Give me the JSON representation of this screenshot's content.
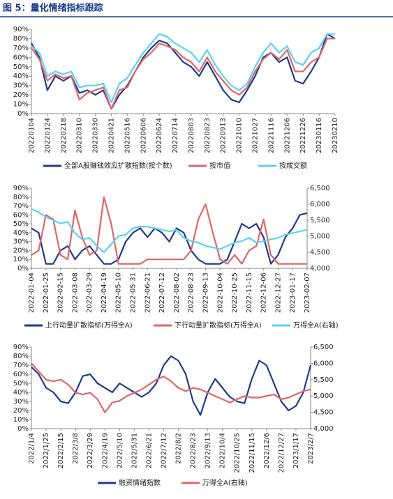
{
  "title": "图 5：量化情绪指标跟踪",
  "chart_data": [
    {
      "type": "line",
      "categories": [
        "20220104",
        null,
        "20220124",
        null,
        "20220218",
        null,
        "20220310",
        null,
        "20220330",
        null,
        "20220421",
        null,
        "20220516",
        null,
        "20220606",
        null,
        "20220624",
        null,
        "20220714",
        null,
        "20220803",
        null,
        "20220823",
        null,
        "20220913",
        null,
        "20221010",
        null,
        "20221027",
        null,
        "20221116",
        null,
        "20221206",
        null,
        "20221226",
        null,
        "20230116",
        null,
        "20230210"
      ],
      "ylim": [
        0,
        90
      ],
      "yticks": [
        {
          "value": 0,
          "label": "0%"
        },
        {
          "value": 10,
          "label": "10%"
        },
        {
          "value": 20,
          "label": "20%"
        },
        {
          "value": 30,
          "label": "30%"
        },
        {
          "value": 40,
          "label": "40%"
        },
        {
          "value": 50,
          "label": "50%"
        },
        {
          "value": 60,
          "label": "60%"
        },
        {
          "value": 70,
          "label": "70%"
        },
        {
          "value": 80,
          "label": "80%"
        },
        {
          "value": 90,
          "label": "90%"
        }
      ],
      "series": [
        {
          "name": "全部A股赚钱效应扩散指数(按个数)",
          "color": "#1f3b8c",
          "values": [
            75,
            60,
            25,
            40,
            35,
            40,
            22,
            25,
            20,
            25,
            5,
            20,
            30,
            45,
            60,
            70,
            78,
            75,
            65,
            55,
            50,
            40,
            55,
            40,
            25,
            15,
            12,
            25,
            40,
            60,
            65,
            55,
            60,
            35,
            32,
            45,
            60,
            85,
            80
          ]
        },
        {
          "name": "按市值",
          "color": "#e06666",
          "values": [
            70,
            58,
            35,
            42,
            38,
            40,
            15,
            22,
            25,
            28,
            5,
            25,
            28,
            45,
            58,
            65,
            75,
            72,
            68,
            60,
            55,
            45,
            60,
            45,
            35,
            25,
            20,
            28,
            45,
            58,
            65,
            58,
            68,
            45,
            45,
            55,
            60,
            80,
            80
          ]
        },
        {
          "name": "按成交额",
          "color": "#5bd2f0",
          "values": [
            72,
            65,
            40,
            45,
            42,
            45,
            28,
            30,
            30,
            32,
            12,
            32,
            38,
            52,
            65,
            75,
            85,
            82,
            75,
            70,
            65,
            55,
            68,
            52,
            40,
            30,
            25,
            32,
            50,
            65,
            75,
            65,
            72,
            55,
            52,
            65,
            70,
            85,
            85
          ]
        }
      ]
    },
    {
      "type": "line",
      "categories": [
        "2022-01-04",
        null,
        "2022-01-25",
        null,
        "2022-02-15",
        null,
        "2022-03-08",
        null,
        "2022-03-29",
        null,
        "2022-04-19",
        null,
        "2022-05-10",
        null,
        "2022-05-31",
        null,
        "2022-06-21",
        null,
        "2022-07-12",
        null,
        "2022-08-02",
        null,
        "2022-08-23",
        null,
        "2022-09-13",
        null,
        "2022-10-04",
        null,
        "2022-10-25",
        null,
        "2022-11-15",
        null,
        "2022-12-06",
        null,
        "2022-12-27",
        null,
        "2023-01-17",
        null,
        "2023-02-07"
      ],
      "ylim": [
        0,
        90
      ],
      "yticks": [
        {
          "value": 0,
          "label": "0%"
        },
        {
          "value": 10,
          "label": "10%"
        },
        {
          "value": 20,
          "label": "20%"
        },
        {
          "value": 30,
          "label": "30%"
        },
        {
          "value": 40,
          "label": "40%"
        },
        {
          "value": 50,
          "label": "50%"
        },
        {
          "value": 60,
          "label": "60%"
        },
        {
          "value": 70,
          "label": "70%"
        },
        {
          "value": 80,
          "label": "80%"
        },
        {
          "value": 90,
          "label": "90%"
        }
      ],
      "y2lim": [
        4000,
        6500
      ],
      "y2ticks": [
        {
          "value": 4000,
          "label": "4,000"
        },
        {
          "value": 4500,
          "label": "4,500"
        },
        {
          "value": 5000,
          "label": "5,000"
        },
        {
          "value": 5500,
          "label": "5,500"
        },
        {
          "value": 6000,
          "label": "6,000"
        },
        {
          "value": 6500,
          "label": "6,500"
        }
      ],
      "series": [
        {
          "name": "上行动量扩散指标(万得全A)",
          "color": "#1f3b8c",
          "values": [
            45,
            40,
            5,
            5,
            20,
            25,
            10,
            20,
            25,
            15,
            5,
            5,
            10,
            30,
            40,
            45,
            35,
            45,
            40,
            30,
            45,
            40,
            20,
            10,
            5,
            5,
            5,
            10,
            30,
            50,
            45,
            50,
            35,
            5,
            15,
            35,
            45,
            60,
            62
          ]
        },
        {
          "name": "下行动量扩散指标(万得全A)",
          "color": "#e06666",
          "values": [
            15,
            20,
            60,
            55,
            15,
            10,
            65,
            35,
            15,
            20,
            80,
            50,
            5,
            5,
            5,
            5,
            10,
            10,
            10,
            10,
            10,
            10,
            20,
            55,
            72,
            40,
            10,
            5,
            15,
            5,
            20,
            25,
            55,
            15,
            5,
            5,
            5,
            5,
            5
          ]
        },
        {
          "name": "万得全A(右轴)",
          "color": "#5bd2f0",
          "axis": "y2",
          "values": [
            5850,
            5750,
            5600,
            5500,
            5400,
            5450,
            5100,
            4900,
            4950,
            4700,
            4500,
            4750,
            5000,
            5050,
            5250,
            5300,
            5300,
            5250,
            5200,
            5150,
            5200,
            4950,
            4850,
            4800,
            4700,
            4650,
            4600,
            4700,
            4800,
            4850,
            4950,
            4800,
            4850,
            4900,
            4950,
            5050,
            5100,
            5150,
            5200
          ]
        }
      ]
    },
    {
      "type": "line",
      "categories": [
        "2022/1/4",
        null,
        "2022/1/25",
        null,
        "2022/2/15",
        null,
        "2022/3/8",
        null,
        "2022/3/29",
        null,
        "2022/4/19",
        null,
        "2022/5/10",
        null,
        "2022/5/31",
        null,
        "2022/6/21",
        null,
        "2022/7/12",
        null,
        "2022/8/2",
        null,
        "2022/8/23",
        null,
        "2022/9/13",
        null,
        "2022/10/4",
        null,
        "2022/10/25",
        null,
        "2022/11/15",
        null,
        "2022/12/6",
        null,
        "2022/12/27",
        null,
        "2023/1/17",
        null,
        "2023/2/7"
      ],
      "ylim": [
        0,
        90
      ],
      "yticks": [
        {
          "value": 0,
          "label": "0%"
        },
        {
          "value": 10,
          "label": "10%"
        },
        {
          "value": 20,
          "label": "20%"
        },
        {
          "value": 30,
          "label": "30%"
        },
        {
          "value": 40,
          "label": "40%"
        },
        {
          "value": 50,
          "label": "50%"
        },
        {
          "value": 60,
          "label": "60%"
        },
        {
          "value": 70,
          "label": "70%"
        },
        {
          "value": 80,
          "label": "80%"
        },
        {
          "value": 90,
          "label": "90%"
        }
      ],
      "y2lim": [
        4000,
        6500
      ],
      "y2ticks": [
        {
          "value": 4000,
          "label": "4,000"
        },
        {
          "value": 4500,
          "label": "4,500"
        },
        {
          "value": 5000,
          "label": "5,000"
        },
        {
          "value": 5500,
          "label": "5,500"
        },
        {
          "value": 6000,
          "label": "6,000"
        },
        {
          "value": 6500,
          "label": "6,500"
        }
      ],
      "series": [
        {
          "name": "融资情绪指数",
          "color": "#1f3b8c",
          "values": [
            68,
            60,
            45,
            40,
            30,
            28,
            40,
            58,
            60,
            50,
            45,
            40,
            50,
            45,
            40,
            35,
            40,
            50,
            70,
            80,
            75,
            60,
            30,
            15,
            40,
            55,
            45,
            35,
            30,
            28,
            55,
            75,
            70,
            50,
            30,
            20,
            25,
            40,
            70
          ]
        },
        {
          "name": "万得全A(右轴)",
          "color": "#e06666",
          "axis": "y2",
          "values": [
            6000,
            5750,
            5500,
            5450,
            5500,
            5350,
            5100,
            5050,
            5100,
            4900,
            4500,
            4800,
            4850,
            5000,
            5100,
            5200,
            5350,
            5500,
            5600,
            5450,
            5250,
            5150,
            5250,
            5200,
            5100,
            5000,
            4900,
            4800,
            4900,
            5000,
            4950,
            4950,
            5000,
            5050,
            4900,
            4950,
            5050,
            5150,
            5200
          ]
        }
      ]
    }
  ]
}
